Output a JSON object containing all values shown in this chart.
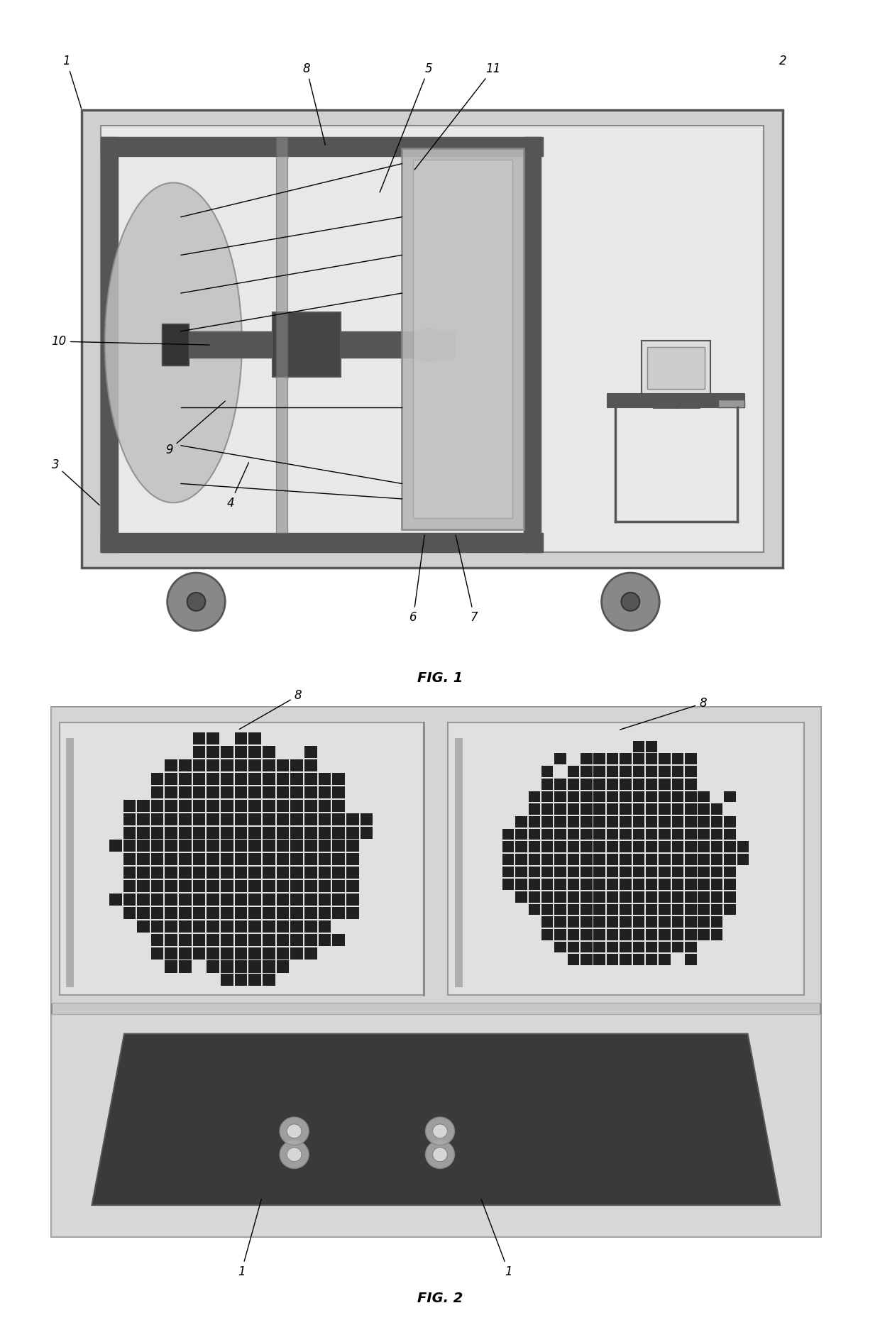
{
  "bg_color": "#ffffff",
  "fig1_title": "FIG. 1",
  "fig2_title": "FIG. 2",
  "fig_bg": "#d8d8d8",
  "outer_rect_color": "#b0b0b0",
  "inner_bg": "#e8e8e8",
  "dark_gray": "#555555",
  "medium_gray": "#888888",
  "light_gray": "#cccccc",
  "black": "#000000",
  "dark_brown": "#444444",
  "wheel_color": "#777777"
}
